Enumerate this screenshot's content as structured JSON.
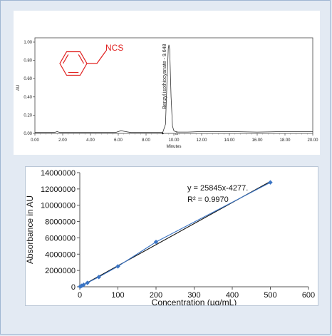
{
  "chart_data": [
    {
      "type": "line",
      "ylabel": "AU",
      "xlabel": "Minutes",
      "xlim": [
        0,
        20
      ],
      "ylim": [
        0,
        1.0
      ],
      "x_ticks": [
        "0.00",
        "2.00",
        "4.00",
        "6.00",
        "8.00",
        "10.00",
        "12.00",
        "14.00",
        "16.00",
        "18.00",
        "20.00"
      ],
      "y_ticks": [
        "0.00",
        "0.20",
        "0.40",
        "0.60",
        "0.80",
        "1.00"
      ],
      "peak_label": "Benzyl isothiocyanate - 9.648",
      "peak_retention_time": 9.648,
      "structure_label": "NCS",
      "colors": {
        "trace": "#333333",
        "structure": "#e0201f"
      },
      "series": [
        {
          "x": [
            0,
            1.4,
            1.6,
            1.8,
            3.0,
            5.8,
            6.2,
            6.5,
            6.9,
            8.5,
            9.2,
            9.4,
            9.5,
            9.6,
            9.648,
            9.7,
            9.8,
            9.9,
            10.0,
            10.1,
            10.3,
            11.0,
            12.0,
            14.0,
            16.0,
            18.0,
            20.0
          ],
          "y": [
            0.01,
            0.01,
            0.02,
            0.01,
            0.01,
            0.01,
            0.03,
            0.02,
            0.01,
            0.01,
            0.01,
            0.1,
            0.55,
            0.93,
            0.97,
            0.92,
            0.4,
            0.08,
            0.03,
            0.02,
            0.015,
            0.015,
            0.02,
            0.02,
            0.015,
            0.02,
            0.02
          ]
        }
      ]
    },
    {
      "type": "scatter",
      "xlabel": "Concentration (µg/mL)",
      "ylabel": "Absorbance in AU",
      "xlim": [
        0,
        600
      ],
      "ylim": [
        0,
        14000000
      ],
      "x_ticks": [
        "0",
        "100",
        "200",
        "300",
        "400",
        "500",
        "600"
      ],
      "y_ticks": [
        "0",
        "2000000",
        "4000000",
        "6000000",
        "8000000",
        "10000000",
        "12000000",
        "14000000"
      ],
      "equation": "y = 25845x-4277.",
      "r_squared": "R² = 0.9970",
      "colors": {
        "points": "#3a74c4",
        "trend": "#111111"
      },
      "trendline": {
        "slope": 25845,
        "intercept": -4277
      },
      "series": [
        {
          "x": [
            1,
            5,
            10,
            20,
            50,
            100,
            200,
            500
          ],
          "y": [
            30000,
            120000,
            240000,
            480000,
            1200000,
            2500000,
            5500000,
            12800000
          ]
        }
      ]
    }
  ]
}
